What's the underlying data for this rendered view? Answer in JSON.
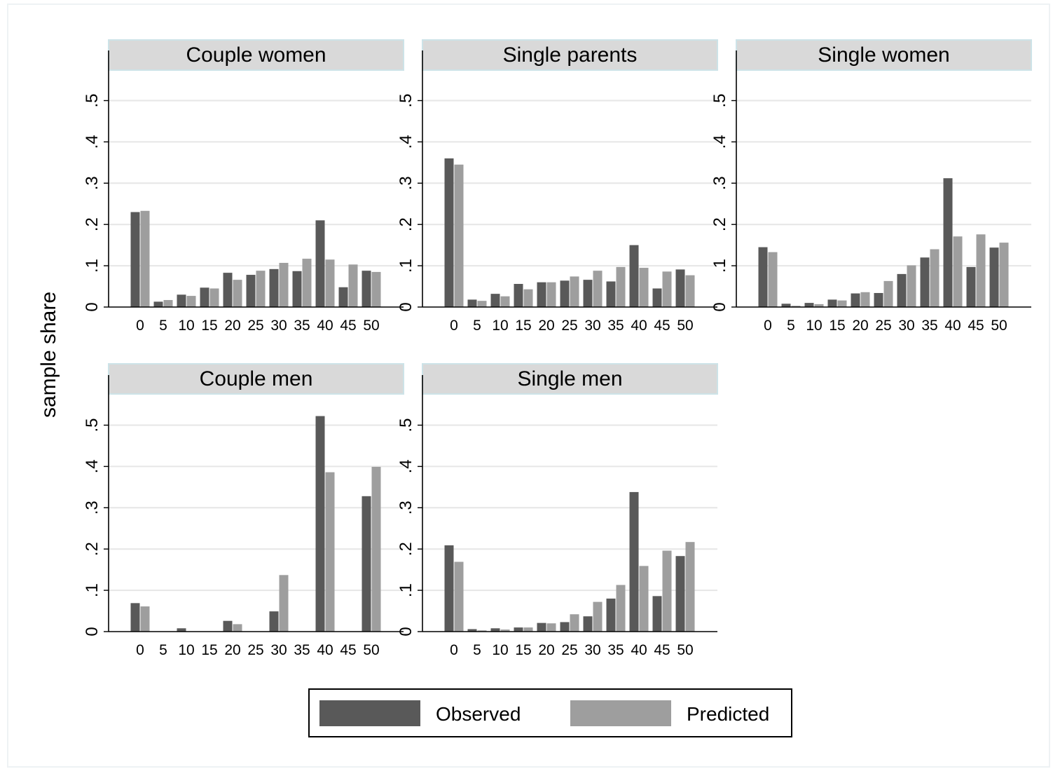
{
  "chart_data": {
    "type": "bar",
    "ylabel": "sample share",
    "ylim": [
      0,
      0.55
    ],
    "y_ticks": [
      0,
      0.1,
      0.2,
      0.3,
      0.4,
      0.5
    ],
    "y_tick_labels": [
      "0",
      ".1",
      ".2",
      ".3",
      ".4",
      ".5"
    ],
    "categories": [
      "0",
      "5",
      "10",
      "15",
      "20",
      "25",
      "30",
      "35",
      "40",
      "45",
      "50"
    ],
    "grid": true,
    "legend": {
      "placement": "bottom",
      "entries": [
        {
          "name": "Observed",
          "color": "#595959"
        },
        {
          "name": "Predicted",
          "color": "#9e9e9e"
        }
      ]
    },
    "panels": [
      {
        "title": "Couple women",
        "series": [
          {
            "name": "Observed",
            "values": [
              0.23,
              0.013,
              0.03,
              0.047,
              0.083,
              0.078,
              0.092,
              0.087,
              0.21,
              0.048,
              0.088
            ]
          },
          {
            "name": "Predicted",
            "values": [
              0.233,
              0.017,
              0.027,
              0.045,
              0.066,
              0.088,
              0.107,
              0.117,
              0.115,
              0.103,
              0.085
            ]
          }
        ]
      },
      {
        "title": "Single parents",
        "series": [
          {
            "name": "Observed",
            "values": [
              0.36,
              0.018,
              0.032,
              0.056,
              0.06,
              0.064,
              0.066,
              0.062,
              0.15,
              0.045,
              0.091
            ]
          },
          {
            "name": "Predicted",
            "values": [
              0.345,
              0.015,
              0.026,
              0.043,
              0.06,
              0.074,
              0.088,
              0.097,
              0.095,
              0.086,
              0.077
            ]
          }
        ]
      },
      {
        "title": "Single women",
        "series": [
          {
            "name": "Observed",
            "values": [
              0.145,
              0.008,
              0.01,
              0.018,
              0.033,
              0.034,
              0.08,
              0.12,
              0.312,
              0.097,
              0.144
            ]
          },
          {
            "name": "Predicted",
            "values": [
              0.133,
              0.003,
              0.007,
              0.016,
              0.036,
              0.063,
              0.101,
              0.14,
              0.171,
              0.176,
              0.156
            ]
          }
        ]
      },
      {
        "title": "Couple men",
        "series": [
          {
            "name": "Observed",
            "values": [
              0.069,
              0.0,
              0.008,
              0.0,
              0.026,
              0.0,
              0.049,
              0.0,
              0.522,
              0.0,
              0.328
            ]
          },
          {
            "name": "Predicted",
            "values": [
              0.061,
              0.0,
              0.0,
              0.0,
              0.018,
              0.0,
              0.137,
              0.0,
              0.386,
              0.0,
              0.399
            ]
          }
        ]
      },
      {
        "title": "Single men",
        "series": [
          {
            "name": "Observed",
            "values": [
              0.209,
              0.006,
              0.008,
              0.01,
              0.021,
              0.023,
              0.037,
              0.08,
              0.338,
              0.086,
              0.183
            ]
          },
          {
            "name": "Predicted",
            "values": [
              0.169,
              0.003,
              0.005,
              0.01,
              0.02,
              0.042,
              0.072,
              0.113,
              0.159,
              0.196,
              0.217
            ]
          }
        ]
      }
    ]
  }
}
